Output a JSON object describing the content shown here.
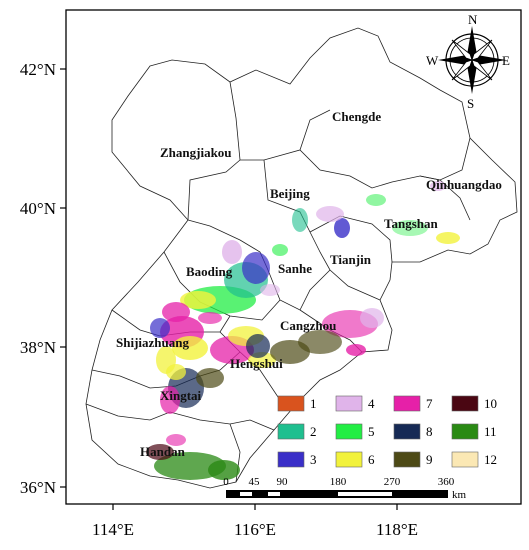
{
  "axes": {
    "lat_ticks": [
      "42°N",
      "40°N",
      "38°N",
      "36°N"
    ],
    "lon_ticks": [
      "114°E",
      "116°E",
      "118°E"
    ]
  },
  "cities": [
    {
      "name": "Zhangjiakou"
    },
    {
      "name": "Chengde"
    },
    {
      "name": "Beijing"
    },
    {
      "name": "Qinhuangdao"
    },
    {
      "name": "Tangshan"
    },
    {
      "name": "Tianjin"
    },
    {
      "name": "Baoding"
    },
    {
      "name": "Sanhe"
    },
    {
      "name": "Cangzhou"
    },
    {
      "name": "Shijiazhuang"
    },
    {
      "name": "Hengshui"
    },
    {
      "name": "Xingtai"
    },
    {
      "name": "Handan"
    }
  ],
  "legend": [
    {
      "label": "1",
      "color": "#d9531e"
    },
    {
      "label": "2",
      "color": "#1fbf8f"
    },
    {
      "label": "3",
      "color": "#3a2fc8"
    },
    {
      "label": "4",
      "color": "#e0b4ea"
    },
    {
      "label": "5",
      "color": "#22ee44"
    },
    {
      "label": "6",
      "color": "#f2f23c"
    },
    {
      "label": "7",
      "color": "#e620a8"
    },
    {
      "label": "8",
      "color": "#162a55"
    },
    {
      "label": "9",
      "color": "#4d4a16"
    },
    {
      "label": "10",
      "color": "#4a0612"
    },
    {
      "label": "11",
      "color": "#2a8a14"
    },
    {
      "label": "12",
      "color": "#fbe8b4"
    }
  ],
  "scale_bar": {
    "ticks": [
      "0",
      "45",
      "90",
      "180",
      "270",
      "360"
    ],
    "unit": "km"
  },
  "compass": {
    "n": "N",
    "s": "S",
    "e": "E",
    "w": "W"
  }
}
